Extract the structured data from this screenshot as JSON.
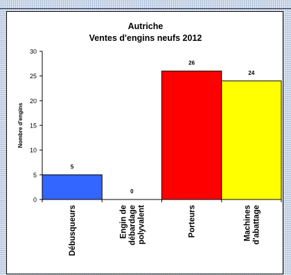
{
  "chart_data": {
    "type": "bar",
    "title": "Autriche",
    "subtitle": "Ventes d'engins neufs 2012",
    "ylabel": "Nombre d'engins",
    "xlabel": "",
    "ylim": [
      0,
      30
    ],
    "yticks": [
      0,
      5,
      10,
      15,
      20,
      25,
      30
    ],
    "categories": [
      [
        "Débusqueurs"
      ],
      [
        "Engin de",
        "débardage",
        "polyvalent"
      ],
      [
        "Porteurs"
      ],
      [
        "Machines",
        "d'abattage"
      ]
    ],
    "values": [
      5,
      0,
      26,
      24
    ],
    "colors": [
      "#3366ff",
      "#999999",
      "#ff0000",
      "#ffff00"
    ],
    "grid": false,
    "legend": "none"
  }
}
